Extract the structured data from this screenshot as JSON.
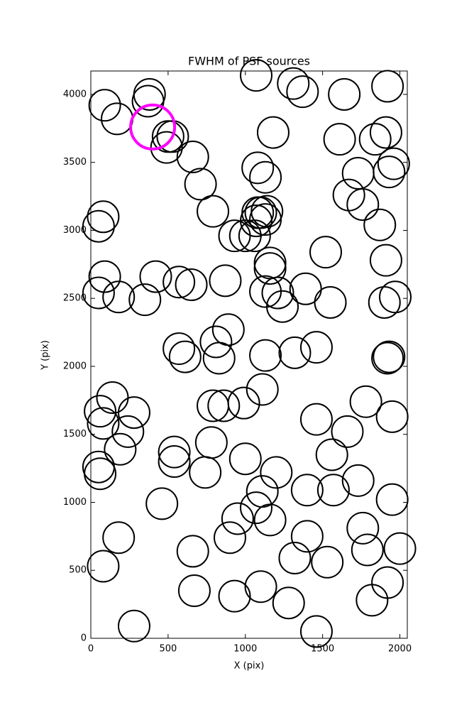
{
  "chart_data": {
    "type": "scatter",
    "title": "FWHM of PSF sources",
    "xlabel": "X (pix)",
    "ylabel": "Y (pix)",
    "xlim": [
      0,
      2048
    ],
    "ylim": [
      0,
      4172
    ],
    "xticks": [
      0,
      500,
      1000,
      1500,
      2000
    ],
    "yticks": [
      0,
      500,
      1000,
      1500,
      2000,
      2500,
      3000,
      3500,
      4000
    ],
    "series": [
      {
        "color": "#000000",
        "x": [
          90,
          170,
          380,
          370,
          500,
          530,
          490,
          660,
          710,
          790,
          930,
          1000,
          1060,
          1070,
          1310,
          1370,
          1640,
          1610,
          1920,
          1840,
          1910,
          1960,
          1930,
          1730,
          1670,
          1760,
          1870,
          1080,
          1130,
          1100,
          1080,
          1140,
          1070,
          1130,
          1180,
          1520,
          1910,
          1160,
          1160,
          1130,
          1210,
          1240,
          1390,
          1550,
          1900,
          1970,
          870,
          570,
          650,
          420,
          350,
          180,
          90,
          80,
          50,
          50,
          890,
          810,
          830,
          570,
          610,
          1130,
          1320,
          1460,
          1930,
          1920,
          1110,
          990,
          860,
          790,
          140,
          60,
          80,
          280,
          240,
          190,
          50,
          60,
          540,
          540,
          740,
          780,
          1000,
          1200,
          1110,
          1070,
          950,
          900,
          1160,
          1460,
          1660,
          1560,
          1400,
          1570,
          1730,
          1780,
          1950,
          1950,
          1760,
          1790,
          2000,
          1400,
          1320,
          1530,
          1920,
          1820,
          460,
          180,
          80,
          660,
          670,
          930,
          1100,
          1280,
          280,
          1460
        ],
        "y": [
          3920,
          3820,
          4000,
          3950,
          3690,
          3690,
          3610,
          3540,
          3340,
          3140,
          2960,
          2960,
          2960,
          4140,
          4080,
          4020,
          4000,
          3670,
          4060,
          3670,
          3720,
          3490,
          3430,
          3420,
          3260,
          3190,
          3040,
          3460,
          3390,
          3130,
          3130,
          3140,
          3070,
          3080,
          3720,
          2840,
          2780,
          2760,
          2720,
          2550,
          2540,
          2440,
          2570,
          2470,
          2470,
          2510,
          2630,
          2620,
          2600,
          2660,
          2490,
          2510,
          2660,
          3100,
          3030,
          2540,
          2270,
          2180,
          2060,
          2130,
          2070,
          2080,
          2100,
          2140,
          2070,
          2060,
          1830,
          1730,
          1710,
          1710,
          1770,
          1670,
          1580,
          1660,
          1520,
          1390,
          1260,
          1210,
          1370,
          1300,
          1220,
          1440,
          1320,
          1220,
          1080,
          960,
          880,
          740,
          870,
          1610,
          1520,
          1350,
          1090,
          1090,
          1160,
          1740,
          1630,
          1020,
          810,
          650,
          660,
          750,
          590,
          560,
          410,
          280,
          990,
          740,
          530,
          640,
          350,
          310,
          380,
          260,
          90,
          50
        ]
      },
      {
        "color": "#ff00ff",
        "x": [
          400
        ],
        "y": [
          3760
        ]
      }
    ]
  }
}
